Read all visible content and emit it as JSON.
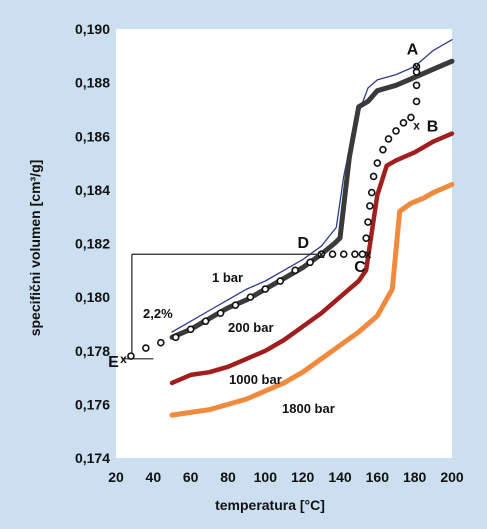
{
  "chart_data": {
    "type": "line",
    "title": "",
    "xlabel": "temperatura [°C]",
    "ylabel": "specifični volumen  [cm³/g]",
    "xlim": [
      20,
      200
    ],
    "ylim": [
      0.174,
      0.19
    ],
    "x_ticks": [
      "20",
      "40",
      "60",
      "80",
      "100",
      "120",
      "140",
      "160",
      "180",
      "200"
    ],
    "y_ticks": [
      "0,174",
      "0,176",
      "0,178",
      "0,180",
      "0,182",
      "0,184",
      "0,186",
      "0,188",
      "0,190"
    ],
    "grid": false,
    "colors": {
      "plot_bg": "#ffffff",
      "page_bg": "#ccdff0",
      "series_thin": "#2b3f8f",
      "series_1bar": "#3a3a3a",
      "series_200bar": "#a01e1e",
      "series_1000bar": "#f08a3c",
      "dotted": "#111111"
    },
    "series": [
      {
        "name": "",
        "style": "thin-blue",
        "x": [
          50,
          60,
          70,
          80,
          90,
          100,
          110,
          120,
          130,
          138,
          142,
          148,
          155,
          160,
          170,
          180,
          190,
          200
        ],
        "y": [
          0.1787,
          0.1791,
          0.1795,
          0.1799,
          0.1803,
          0.1806,
          0.181,
          0.1814,
          0.1819,
          0.1826,
          0.1845,
          0.1865,
          0.1878,
          0.1881,
          0.1883,
          0.1886,
          0.1892,
          0.1896
        ]
      },
      {
        "name": "1 bar",
        "style": "thick-dark",
        "x": [
          50,
          60,
          70,
          80,
          90,
          100,
          110,
          120,
          130,
          137,
          140,
          145,
          150,
          155,
          160,
          170,
          180,
          190,
          200
        ],
        "y": [
          0.1785,
          0.1788,
          0.1792,
          0.1796,
          0.1799,
          0.1803,
          0.1807,
          0.1811,
          0.1816,
          0.182,
          0.1822,
          0.1852,
          0.1871,
          0.1873,
          0.1877,
          0.1879,
          0.1882,
          0.1885,
          0.1888
        ]
      },
      {
        "name": "200 bar",
        "style": "dark-red",
        "x": [
          50,
          60,
          70,
          80,
          90,
          100,
          110,
          120,
          130,
          140,
          150,
          154,
          160,
          165,
          170,
          180,
          190,
          200
        ],
        "y": [
          0.1768,
          0.1771,
          0.1772,
          0.1774,
          0.1777,
          0.178,
          0.1784,
          0.1789,
          0.1794,
          0.18,
          0.1806,
          0.181,
          0.1838,
          0.1849,
          0.1851,
          0.1854,
          0.1858,
          0.1861
        ]
      },
      {
        "name": "1000 bar",
        "style": "orange",
        "x": [
          50,
          60,
          70,
          80,
          90,
          100,
          110,
          120,
          130,
          140,
          150,
          160,
          168,
          172,
          178,
          185,
          190,
          200
        ],
        "y": [
          0.1756,
          0.1757,
          0.1758,
          0.176,
          0.1762,
          0.1765,
          0.1768,
          0.1772,
          0.1777,
          0.1782,
          0.1787,
          0.1793,
          0.1803,
          0.1832,
          0.1835,
          0.1837,
          0.1839,
          0.1842
        ]
      },
      {
        "name": "",
        "style": "dotted-path",
        "x": [
          28,
          36,
          44,
          52,
          60,
          68,
          76,
          84,
          92,
          100,
          108,
          116,
          124,
          130,
          136,
          142,
          148,
          152,
          154,
          155,
          156,
          157,
          158,
          160,
          163,
          166,
          170,
          174,
          178,
          181,
          181,
          181,
          181
        ],
        "y": [
          0.1778,
          0.1781,
          0.1783,
          0.1785,
          0.1788,
          0.1791,
          0.1794,
          0.1797,
          0.18,
          0.1803,
          0.1806,
          0.181,
          0.1813,
          0.1816,
          0.1816,
          0.1816,
          0.1816,
          0.1816,
          0.1822,
          0.1828,
          0.1834,
          0.1839,
          0.1845,
          0.185,
          0.1855,
          0.1859,
          0.1862,
          0.1865,
          0.1867,
          0.1873,
          0.1879,
          0.1884,
          0.1886
        ]
      }
    ],
    "points": [
      {
        "label": "A",
        "x": 181,
        "y": 0.1886
      },
      {
        "label": "B",
        "x": 181,
        "y": 0.1864
      },
      {
        "label": "C",
        "x": 155,
        "y": 0.1816
      },
      {
        "label": "D",
        "x": 130,
        "y": 0.1816
      },
      {
        "label": "E",
        "x": 24,
        "y": 0.1777
      }
    ],
    "annotations": {
      "label_1bar": "1 bar",
      "label_200bar": "200 bar",
      "label_1000bar": "1000 bar",
      "label_1800bar": "1800 bar",
      "percent": "2,2%",
      "marker": "x"
    }
  }
}
